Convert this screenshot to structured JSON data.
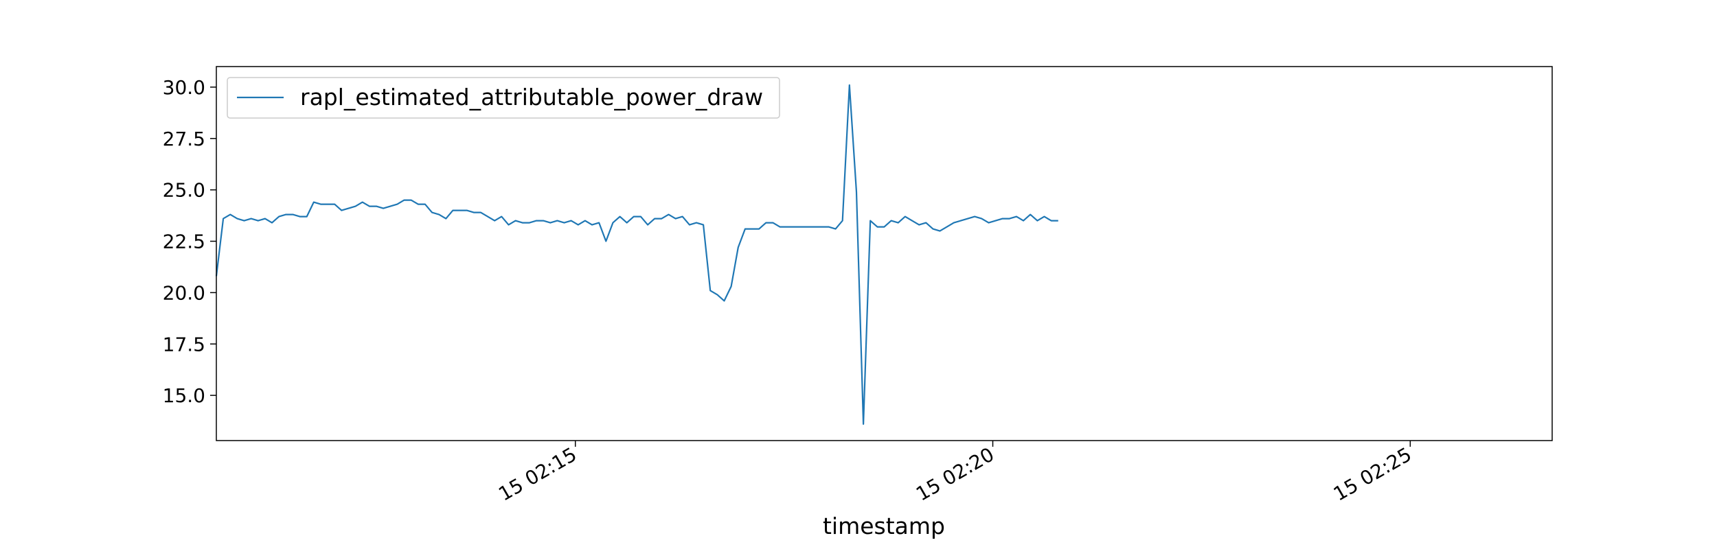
{
  "chart_data": {
    "type": "line",
    "title": "",
    "xlabel": "timestamp",
    "ylabel": "",
    "x_start": "15 02:10:42",
    "x_step_seconds": 5,
    "xlim": [
      "15 02:10:42",
      "15 02:26:42"
    ],
    "ylim": [
      12.8,
      31.0
    ],
    "x_ticks": [
      {
        "value": "15 02:15:00",
        "label": "15 02:15"
      },
      {
        "value": "15 02:20:00",
        "label": "15 02:20"
      },
      {
        "value": "15 02:25:00",
        "label": "15 02:25"
      }
    ],
    "y_ticks": [
      15.0,
      17.5,
      20.0,
      22.5,
      25.0,
      27.5,
      30.0
    ],
    "y_tick_labels": [
      "15.0",
      "17.5",
      "20.0",
      "22.5",
      "25.0",
      "27.5",
      "30.0"
    ],
    "grid": false,
    "legend_position": "top-left",
    "series": [
      {
        "name": "rapl_estimated_attributable_power_draw",
        "color": "#1f77b4",
        "values": [
          20.8,
          23.6,
          23.8,
          23.6,
          23.5,
          23.6,
          23.5,
          23.6,
          23.4,
          23.7,
          23.8,
          23.8,
          23.7,
          23.7,
          24.4,
          24.3,
          24.3,
          24.3,
          24.0,
          24.1,
          24.2,
          24.4,
          24.2,
          24.2,
          24.1,
          24.2,
          24.3,
          24.5,
          24.5,
          24.3,
          24.3,
          23.9,
          23.8,
          23.6,
          24.0,
          24.0,
          24.0,
          23.9,
          23.9,
          23.7,
          23.5,
          23.7,
          23.3,
          23.5,
          23.4,
          23.4,
          23.5,
          23.5,
          23.4,
          23.5,
          23.4,
          23.5,
          23.3,
          23.5,
          23.3,
          23.4,
          22.5,
          23.4,
          23.7,
          23.4,
          23.7,
          23.7,
          23.3,
          23.6,
          23.6,
          23.8,
          23.6,
          23.7,
          23.3,
          23.4,
          23.3,
          20.1,
          19.9,
          19.6,
          20.3,
          22.2,
          23.1,
          23.1,
          23.1,
          23.4,
          23.4,
          23.2,
          23.2,
          23.2,
          23.2,
          23.2,
          23.2,
          23.2,
          23.2,
          23.1,
          23.5,
          30.1,
          24.9,
          13.6,
          23.5,
          23.2,
          23.2,
          23.5,
          23.4,
          23.7,
          23.5,
          23.3,
          23.4,
          23.1,
          23.0,
          23.2,
          23.4,
          23.5,
          23.6,
          23.7,
          23.6,
          23.4,
          23.5,
          23.6,
          23.6,
          23.7,
          23.5,
          23.8,
          23.5,
          23.7,
          23.5,
          23.5
        ]
      }
    ]
  }
}
